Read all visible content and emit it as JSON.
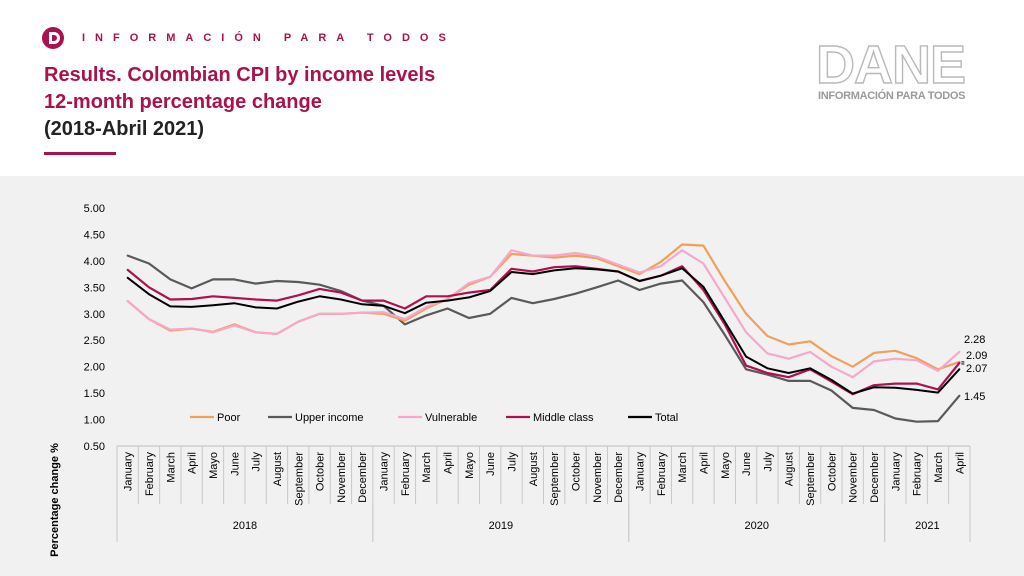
{
  "header": {
    "tagline": "INFORMACIÓN PARA TODOS",
    "title_line1": "Results. Colombian CPI by income levels",
    "title_line2": "12-month percentage change",
    "title_line3": "(2018-Abril 2021)",
    "logo_word": "DANE",
    "logo_subtitle": "INFORMACIÓN PARA TODOS",
    "logo_icon": "d-logo-icon"
  },
  "colors": {
    "brand": "#a8124e",
    "poor": "#f0a05a",
    "upper": "#595959",
    "vulnerable": "#f7a6cc",
    "middle": "#b0104f",
    "total": "#000000"
  },
  "chart_data": {
    "type": "line",
    "title": "Results. Colombian CPI by income levels 12-month percentage change (2018-Abril 2021)",
    "xlabel": "",
    "ylabel": "Percentage change %",
    "ylim": [
      0.5,
      5.0
    ],
    "yticks": [
      "0.50",
      "1.00",
      "1.50",
      "2.00",
      "2.50",
      "3.00",
      "3.50",
      "4.00",
      "4.50",
      "5.00"
    ],
    "grid": false,
    "legend_position": "bottom-center",
    "categories": [
      "January",
      "February",
      "March",
      "April",
      "Mayo",
      "June",
      "July",
      "August",
      "September",
      "October",
      "November",
      "December",
      "January",
      "February",
      "March",
      "April",
      "Mayo",
      "June",
      "July",
      "August",
      "September",
      "October",
      "November",
      "December",
      "January",
      "February",
      "March",
      "April",
      "Mayo",
      "June",
      "July",
      "August",
      "September",
      "October",
      "November",
      "December",
      "January",
      "February",
      "March",
      "April"
    ],
    "years": [
      {
        "label": "2018",
        "start": 0,
        "end": 11
      },
      {
        "label": "2019",
        "start": 12,
        "end": 23
      },
      {
        "label": "2020",
        "start": 24,
        "end": 35
      },
      {
        "label": "2021",
        "start": 36,
        "end": 39
      }
    ],
    "series": [
      {
        "name": "Poor",
        "key": "poor",
        "values": [
          3.24,
          2.9,
          2.68,
          2.72,
          2.66,
          2.8,
          2.65,
          2.62,
          2.85,
          3.0,
          3.0,
          3.02,
          3.0,
          2.87,
          3.1,
          3.28,
          3.55,
          3.7,
          4.13,
          4.1,
          4.06,
          4.1,
          4.05,
          3.9,
          3.75,
          3.98,
          4.31,
          4.29,
          3.62,
          3.0,
          2.58,
          2.42,
          2.48,
          2.2,
          2.0,
          2.26,
          2.3,
          2.16,
          1.95,
          2.09
        ]
      },
      {
        "name": "Upper income",
        "key": "upper",
        "values": [
          4.1,
          3.95,
          3.65,
          3.48,
          3.65,
          3.65,
          3.57,
          3.62,
          3.6,
          3.55,
          3.43,
          3.25,
          3.15,
          2.8,
          2.97,
          3.1,
          2.92,
          3.0,
          3.3,
          3.2,
          3.28,
          3.38,
          3.5,
          3.63,
          3.45,
          3.57,
          3.63,
          3.22,
          2.6,
          1.95,
          1.85,
          1.73,
          1.73,
          1.55,
          1.22,
          1.18,
          1.02,
          0.96,
          0.97,
          1.45
        ]
      },
      {
        "name": "Vulnerable",
        "key": "vulnerable",
        "values": [
          3.24,
          2.9,
          2.7,
          2.72,
          2.65,
          2.78,
          2.65,
          2.62,
          2.85,
          3.0,
          3.0,
          3.02,
          3.03,
          2.9,
          3.13,
          3.28,
          3.58,
          3.7,
          4.2,
          4.1,
          4.1,
          4.15,
          4.08,
          3.93,
          3.78,
          3.9,
          4.2,
          3.95,
          3.3,
          2.65,
          2.25,
          2.15,
          2.28,
          2.0,
          1.8,
          2.1,
          2.15,
          2.12,
          1.92,
          2.28
        ]
      },
      {
        "name": "Middle class",
        "key": "middle",
        "values": [
          3.83,
          3.5,
          3.27,
          3.28,
          3.33,
          3.3,
          3.27,
          3.25,
          3.35,
          3.47,
          3.4,
          3.25,
          3.25,
          3.1,
          3.33,
          3.33,
          3.4,
          3.45,
          3.85,
          3.8,
          3.88,
          3.9,
          3.85,
          3.8,
          3.62,
          3.72,
          3.9,
          3.45,
          2.8,
          2.02,
          1.88,
          1.8,
          1.95,
          1.72,
          1.48,
          1.65,
          1.68,
          1.68,
          1.57,
          2.07
        ]
      },
      {
        "name": "Total",
        "key": "total",
        "values": [
          3.68,
          3.37,
          3.14,
          3.13,
          3.16,
          3.2,
          3.12,
          3.1,
          3.23,
          3.33,
          3.27,
          3.18,
          3.15,
          3.01,
          3.21,
          3.25,
          3.31,
          3.43,
          3.79,
          3.75,
          3.82,
          3.86,
          3.84,
          3.8,
          3.62,
          3.72,
          3.86,
          3.51,
          2.85,
          2.19,
          1.97,
          1.88,
          1.97,
          1.75,
          1.49,
          1.61,
          1.6,
          1.56,
          1.51,
          1.95
        ]
      }
    ],
    "end_labels": [
      "2.28",
      "2.09",
      "2.07",
      "1.45"
    ]
  }
}
